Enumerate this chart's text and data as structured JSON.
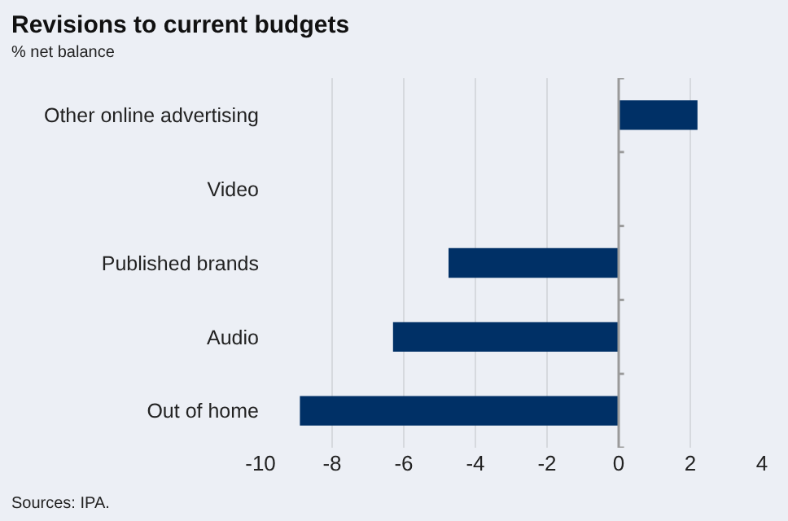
{
  "chart_data": {
    "type": "bar",
    "orientation": "horizontal",
    "title": "Revisions to current budgets",
    "subtitle": "% net balance",
    "categories": [
      "Other online advertising",
      "Video",
      "Published brands",
      "Audio",
      "Out of home"
    ],
    "values": [
      2.2,
      0,
      -4.75,
      -6.3,
      -8.9
    ],
    "color": "#003066",
    "xlim": [
      -10,
      4
    ],
    "xticks": [
      -10,
      -8,
      -6,
      -4,
      -2,
      0,
      2,
      4
    ],
    "grid": "x",
    "annotations": [
      "Sources: IPA."
    ]
  }
}
